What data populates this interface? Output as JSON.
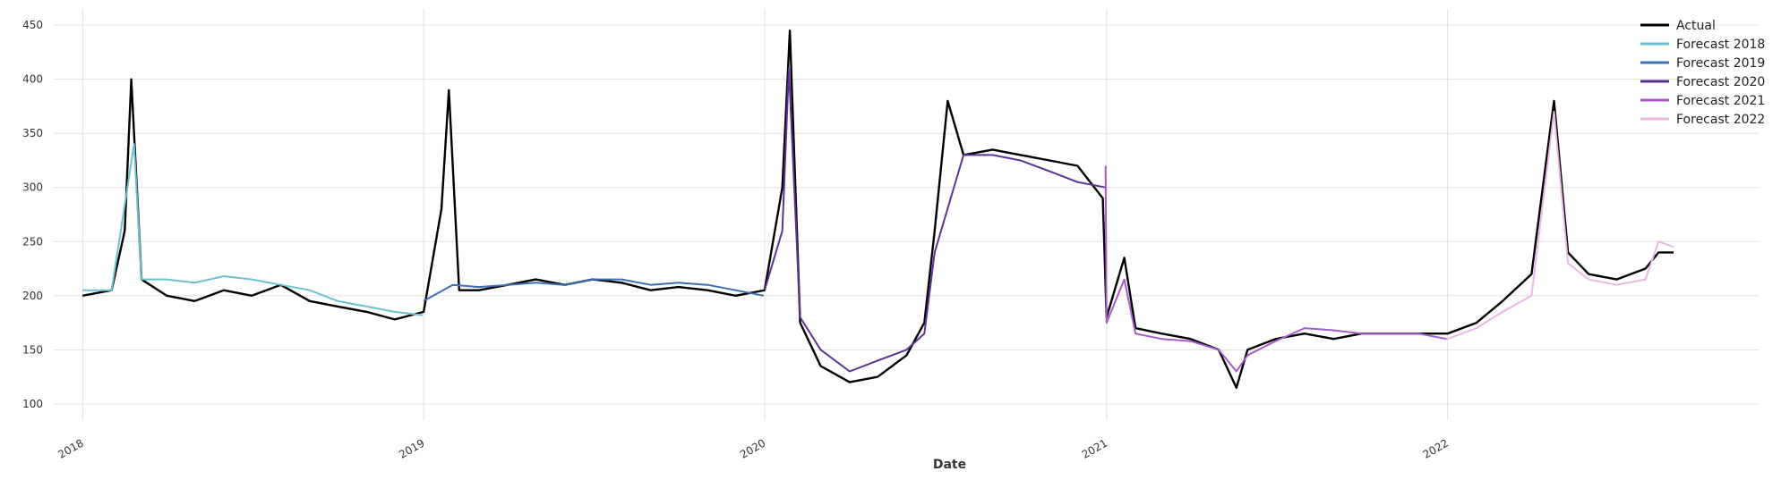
{
  "chart_data": {
    "type": "line",
    "xlabel": "Date",
    "ylabel": "",
    "title": "",
    "x_range": [
      "2017-12-01",
      "2022-12-01"
    ],
    "ylim": [
      85,
      465
    ],
    "x_ticks": [
      "2018-01-01",
      "2019-01-01",
      "2020-01-01",
      "2021-01-01",
      "2022-01-01"
    ],
    "x_tick_labels": [
      "2018",
      "2019",
      "2020",
      "2021",
      "2022"
    ],
    "y_ticks": [
      100,
      150,
      200,
      250,
      300,
      350,
      400,
      450
    ],
    "y_tick_labels": [
      "100",
      "150",
      "200",
      "250",
      "300",
      "350",
      "400",
      "450"
    ],
    "grid": true,
    "legend": "top-right",
    "series": [
      {
        "name": "Actual",
        "color": "#000000",
        "x": [
          "2018-01-01",
          "2018-02-01",
          "2018-02-15",
          "2018-02-22",
          "2018-03-05",
          "2018-04-01",
          "2018-05-01",
          "2018-06-01",
          "2018-07-01",
          "2018-08-01",
          "2018-09-01",
          "2018-10-01",
          "2018-11-01",
          "2018-12-01",
          "2019-01-01",
          "2019-01-20",
          "2019-01-28",
          "2019-02-08",
          "2019-03-01",
          "2019-04-01",
          "2019-05-01",
          "2019-06-01",
          "2019-07-01",
          "2019-08-01",
          "2019-09-01",
          "2019-10-01",
          "2019-11-01",
          "2019-12-01",
          "2020-01-01",
          "2020-01-20",
          "2020-01-28",
          "2020-02-08",
          "2020-03-01",
          "2020-04-01",
          "2020-05-01",
          "2020-06-01",
          "2020-06-20",
          "2020-07-01",
          "2020-07-15",
          "2020-08-01",
          "2020-09-01",
          "2020-10-01",
          "2020-11-01",
          "2020-12-01",
          "2020-12-28",
          "2021-01-01",
          "2021-01-20",
          "2021-02-01",
          "2021-03-01",
          "2021-04-01",
          "2021-05-01",
          "2021-05-20",
          "2021-06-01",
          "2021-07-01",
          "2021-08-01",
          "2021-09-01",
          "2021-10-01",
          "2021-11-01",
          "2021-12-01",
          "2022-01-01",
          "2022-02-01",
          "2022-03-01",
          "2022-04-01",
          "2022-04-25",
          "2022-05-10",
          "2022-06-01",
          "2022-07-01",
          "2022-08-01",
          "2022-08-15",
          "2022-08-31"
        ],
        "values": [
          200,
          205,
          260,
          400,
          215,
          200,
          195,
          205,
          200,
          210,
          195,
          190,
          185,
          178,
          185,
          280,
          390,
          205,
          205,
          210,
          215,
          210,
          215,
          212,
          205,
          208,
          205,
          200,
          205,
          300,
          445,
          175,
          135,
          120,
          125,
          145,
          175,
          260,
          380,
          330,
          335,
          330,
          325,
          320,
          290,
          180,
          235,
          170,
          165,
          160,
          150,
          115,
          150,
          160,
          165,
          160,
          165,
          165,
          165,
          165,
          175,
          195,
          220,
          380,
          240,
          220,
          215,
          225,
          240,
          240
        ]
      },
      {
        "name": "Forecast 2018",
        "color": "#6cc0cf",
        "x": [
          "2018-01-01",
          "2018-02-01",
          "2018-02-25",
          "2018-03-05",
          "2018-04-01",
          "2018-05-01",
          "2018-06-01",
          "2018-07-01",
          "2018-08-01",
          "2018-09-01",
          "2018-10-01",
          "2018-11-01",
          "2018-12-01",
          "2018-12-31"
        ],
        "values": [
          205,
          205,
          340,
          215,
          215,
          212,
          218,
          215,
          210,
          205,
          195,
          190,
          185,
          182
        ]
      },
      {
        "name": "Forecast 2019",
        "color": "#3a6fb0",
        "x": [
          "2019-01-01",
          "2019-02-01",
          "2019-03-01",
          "2019-04-01",
          "2019-05-01",
          "2019-06-01",
          "2019-07-01",
          "2019-08-01",
          "2019-09-01",
          "2019-10-01",
          "2019-11-01",
          "2019-12-01",
          "2019-12-31"
        ],
        "values": [
          195,
          210,
          208,
          210,
          212,
          210,
          215,
          215,
          210,
          212,
          210,
          205,
          200
        ]
      },
      {
        "name": "Forecast 2020",
        "color": "#5a3494",
        "x": [
          "2020-01-01",
          "2020-01-20",
          "2020-01-27",
          "2020-02-08",
          "2020-03-01",
          "2020-04-01",
          "2020-05-01",
          "2020-06-01",
          "2020-06-20",
          "2020-07-01",
          "2020-08-01",
          "2020-09-01",
          "2020-10-01",
          "2020-11-01",
          "2020-12-01",
          "2020-12-31"
        ],
        "values": [
          205,
          260,
          410,
          180,
          150,
          130,
          140,
          150,
          165,
          240,
          330,
          330,
          325,
          315,
          305,
          300
        ]
      },
      {
        "name": "Forecast 2021",
        "color": "#a95bcc",
        "x": [
          "2020-12-31",
          "2021-01-01",
          "2021-01-20",
          "2021-02-01",
          "2021-03-01",
          "2021-04-01",
          "2021-05-01",
          "2021-05-20",
          "2021-06-01",
          "2021-07-01",
          "2021-08-01",
          "2021-09-01",
          "2021-10-01",
          "2021-11-01",
          "2021-12-01",
          "2021-12-31"
        ],
        "values": [
          320,
          175,
          215,
          165,
          160,
          158,
          150,
          130,
          145,
          158,
          170,
          168,
          165,
          165,
          165,
          160
        ]
      },
      {
        "name": "Forecast 2022",
        "color": "#e8b8e4",
        "x": [
          "2022-01-01",
          "2022-02-01",
          "2022-03-01",
          "2022-04-01",
          "2022-04-25",
          "2022-05-10",
          "2022-06-01",
          "2022-07-01",
          "2022-08-01",
          "2022-08-15",
          "2022-08-31"
        ],
        "values": [
          160,
          170,
          185,
          200,
          370,
          230,
          215,
          210,
          215,
          250,
          245
        ]
      }
    ]
  }
}
